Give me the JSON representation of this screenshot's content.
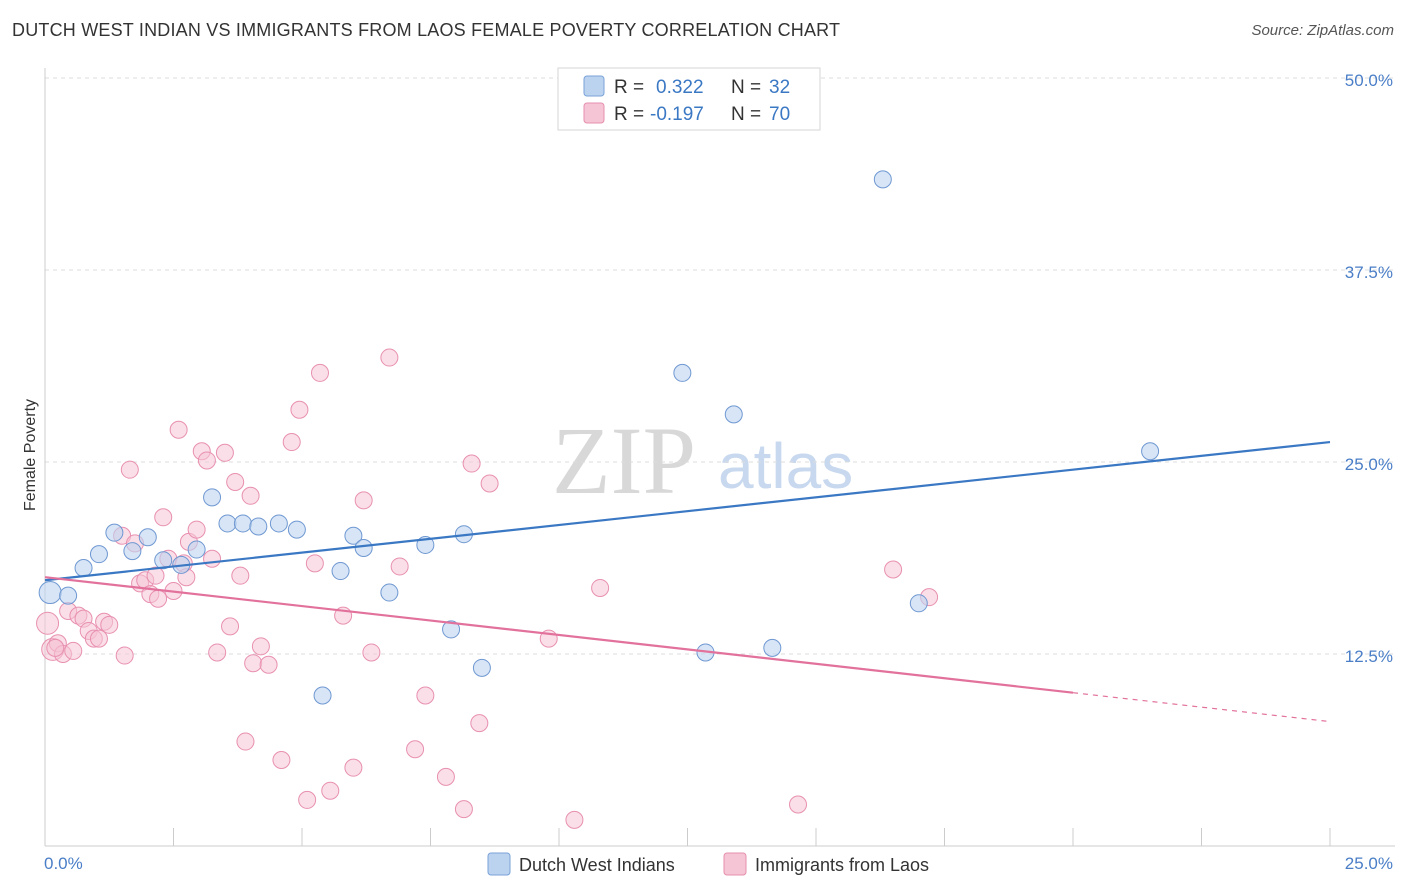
{
  "title": "DUTCH WEST INDIAN VS IMMIGRANTS FROM LAOS FEMALE POVERTY CORRELATION CHART",
  "source": "Source: ZipAtlas.com",
  "watermark": {
    "zip": "ZIP",
    "atlas": "atlas"
  },
  "colors": {
    "blue": "#3b78c4",
    "blue_fill": "#bcd3f0",
    "pink": "#e2719b",
    "pink_fill": "#f5c4d5",
    "grid": "#dddddd",
    "tick_label": "#4a7ec7"
  },
  "legend": {
    "rows": [
      {
        "r_label": "R =",
        "r_value": "0.322",
        "n_label": "N =",
        "n_value": "32"
      },
      {
        "r_label": "R =",
        "r_value": "-0.197",
        "n_label": "N =",
        "n_value": "70"
      }
    ]
  },
  "bottom_legend": [
    "Dutch West Indians",
    "Immigrants from Laos"
  ],
  "chart_data": {
    "type": "scatter",
    "title": "DUTCH WEST INDIAN VS IMMIGRANTS FROM LAOS FEMALE POVERTY CORRELATION CHART",
    "xlabel": "",
    "ylabel": "Female Poverty",
    "xlim": [
      0,
      25
    ],
    "ylim": [
      0,
      50
    ],
    "x_tick_labels": [
      "0.0%",
      "25.0%"
    ],
    "y_ticks": [
      12.5,
      25.0,
      37.5,
      50.0
    ],
    "y_tick_labels": [
      "12.5%",
      "25.0%",
      "37.5%",
      "50.0%"
    ],
    "grid": "horizontal dashed",
    "legend_position": "top-center",
    "series": [
      {
        "name": "Dutch West Indians",
        "color": "#3b78c4",
        "r": 0.322,
        "n": 32,
        "trend": {
          "x": [
            0,
            25
          ],
          "y": [
            17.3,
            26.3
          ],
          "dashed_from": null
        },
        "points": [
          [
            0.1,
            16.5
          ],
          [
            0.45,
            16.3
          ],
          [
            0.75,
            18.1
          ],
          [
            1.05,
            19.0
          ],
          [
            1.35,
            20.4
          ],
          [
            1.7,
            19.2
          ],
          [
            2.0,
            20.1
          ],
          [
            2.3,
            18.6
          ],
          [
            2.65,
            18.3
          ],
          [
            2.95,
            19.3
          ],
          [
            3.25,
            22.7
          ],
          [
            3.55,
            21.0
          ],
          [
            3.85,
            21.0
          ],
          [
            4.15,
            20.8
          ],
          [
            4.55,
            21.0
          ],
          [
            4.9,
            20.6
          ],
          [
            5.4,
            9.8
          ],
          [
            5.75,
            17.9
          ],
          [
            6.0,
            20.2
          ],
          [
            6.2,
            19.4
          ],
          [
            6.7,
            16.5
          ],
          [
            7.4,
            19.6
          ],
          [
            7.9,
            14.1
          ],
          [
            8.15,
            20.3
          ],
          [
            8.5,
            11.6
          ],
          [
            12.4,
            30.8
          ],
          [
            12.85,
            12.6
          ],
          [
            13.4,
            28.1
          ],
          [
            14.15,
            12.9
          ],
          [
            16.3,
            43.4
          ],
          [
            17.0,
            15.8
          ],
          [
            21.5,
            25.7
          ]
        ]
      },
      {
        "name": "Immigrants from Laos",
        "color": "#e2719b",
        "r": -0.197,
        "n": 70,
        "trend": {
          "x": [
            0,
            25
          ],
          "y": [
            17.5,
            8.1
          ],
          "dashed_from": 20
        },
        "points": [
          [
            0.05,
            14.5
          ],
          [
            0.15,
            12.8
          ],
          [
            0.25,
            13.2
          ],
          [
            0.35,
            12.5
          ],
          [
            0.45,
            15.3
          ],
          [
            0.55,
            12.7
          ],
          [
            0.65,
            15.0
          ],
          [
            0.75,
            14.8
          ],
          [
            0.85,
            14.0
          ],
          [
            0.95,
            13.5
          ],
          [
            1.05,
            13.5
          ],
          [
            1.15,
            14.6
          ],
          [
            1.25,
            14.4
          ],
          [
            1.5,
            20.2
          ],
          [
            1.55,
            12.4
          ],
          [
            1.65,
            24.5
          ],
          [
            1.75,
            19.7
          ],
          [
            1.85,
            17.1
          ],
          [
            1.95,
            17.3
          ],
          [
            2.05,
            16.4
          ],
          [
            2.15,
            17.6
          ],
          [
            2.2,
            16.1
          ],
          [
            2.3,
            21.4
          ],
          [
            2.4,
            18.7
          ],
          [
            2.5,
            16.6
          ],
          [
            2.6,
            27.1
          ],
          [
            2.7,
            18.4
          ],
          [
            2.75,
            17.5
          ],
          [
            2.8,
            19.8
          ],
          [
            2.95,
            20.6
          ],
          [
            3.05,
            25.7
          ],
          [
            3.15,
            25.1
          ],
          [
            3.25,
            18.7
          ],
          [
            3.35,
            12.6
          ],
          [
            3.5,
            25.6
          ],
          [
            3.6,
            14.3
          ],
          [
            3.7,
            23.7
          ],
          [
            3.8,
            17.6
          ],
          [
            3.9,
            6.8
          ],
          [
            4.0,
            22.8
          ],
          [
            4.05,
            11.9
          ],
          [
            4.2,
            13.0
          ],
          [
            4.35,
            11.8
          ],
          [
            4.6,
            5.6
          ],
          [
            4.8,
            26.3
          ],
          [
            4.95,
            28.4
          ],
          [
            5.1,
            3.0
          ],
          [
            5.25,
            18.4
          ],
          [
            5.35,
            30.8
          ],
          [
            5.55,
            3.6
          ],
          [
            5.8,
            15.0
          ],
          [
            6.0,
            5.1
          ],
          [
            6.2,
            22.5
          ],
          [
            6.35,
            12.6
          ],
          [
            6.7,
            31.8
          ],
          [
            6.9,
            18.2
          ],
          [
            7.2,
            6.3
          ],
          [
            7.4,
            9.8
          ],
          [
            7.8,
            4.5
          ],
          [
            8.15,
            2.4
          ],
          [
            8.3,
            24.9
          ],
          [
            8.45,
            8.0
          ],
          [
            8.65,
            23.6
          ],
          [
            9.8,
            13.5
          ],
          [
            10.3,
            1.7
          ],
          [
            10.8,
            16.8
          ],
          [
            14.65,
            2.7
          ],
          [
            16.5,
            18.0
          ],
          [
            17.2,
            16.2
          ],
          [
            0.2,
            12.9
          ]
        ]
      }
    ]
  }
}
